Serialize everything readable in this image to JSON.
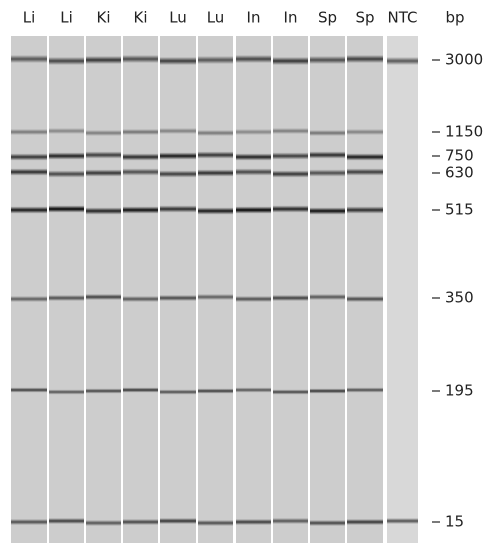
{
  "lanes": [
    "Li",
    "Li",
    "Ki",
    "Ki",
    "Lu",
    "Lu",
    "In",
    "In",
    "Sp",
    "Sp",
    "NTC"
  ],
  "unit": "bp",
  "markers": [
    "3000",
    "1150",
    "750",
    "630",
    "515",
    "350",
    "195",
    "15"
  ]
}
